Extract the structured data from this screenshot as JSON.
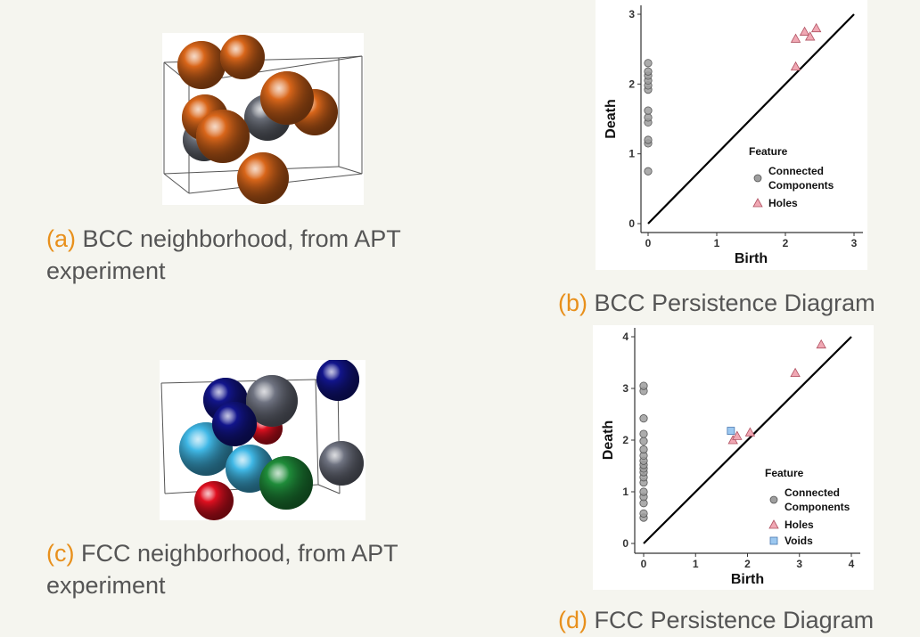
{
  "panels": {
    "a": {
      "letter": "(a)",
      "caption": "BCC neighborhood, from APT experiment"
    },
    "b": {
      "letter": "(b)",
      "caption": "BCC Persistence Diagram"
    },
    "c": {
      "letter": "(c)",
      "caption": "FCC neighborhood, from APT experiment"
    },
    "d": {
      "letter": "(d)",
      "caption": "FCC Persistence Diagram"
    }
  },
  "colors": {
    "label_accent": "#e8901c",
    "bcc_atom": "#d9661a",
    "bcc_center": "#6a6e78",
    "fcc_dark_blue": "#12158c",
    "fcc_light_blue": "#40b8e6",
    "fcc_gray": "#707482",
    "fcc_red": "#e01020",
    "fcc_green": "#1f8c3a",
    "components": "#9e9e9e",
    "holes": "#f0a8b4",
    "voids": "#9cc8f0"
  },
  "chart_data": [
    {
      "type": "scatter",
      "title": "",
      "xlabel": "Birth",
      "ylabel": "Death",
      "xlim": [
        0,
        3
      ],
      "ylim": [
        0,
        3
      ],
      "ticks": [
        "0",
        "1",
        "2",
        "3"
      ],
      "legend_title": "Feature",
      "legend_position": "center-right",
      "diagonal": true,
      "series": [
        {
          "name": "Connected Components",
          "marker": "circle",
          "points": [
            [
              0,
              0.75
            ],
            [
              0,
              1.15
            ],
            [
              0,
              1.2
            ],
            [
              0,
              1.45
            ],
            [
              0,
              1.52
            ],
            [
              0,
              1.62
            ],
            [
              0,
              1.92
            ],
            [
              0,
              1.98
            ],
            [
              0,
              2.05
            ],
            [
              0,
              2.12
            ],
            [
              0,
              2.18
            ],
            [
              0,
              2.3
            ]
          ]
        },
        {
          "name": "Holes",
          "marker": "triangle",
          "points": [
            [
              2.15,
              2.25
            ],
            [
              2.15,
              2.65
            ],
            [
              2.28,
              2.75
            ],
            [
              2.36,
              2.68
            ],
            [
              2.45,
              2.8
            ]
          ]
        }
      ]
    },
    {
      "type": "scatter",
      "title": "",
      "xlabel": "Birth",
      "ylabel": "Death",
      "xlim": [
        0,
        4
      ],
      "ylim": [
        0,
        4
      ],
      "ticks": [
        "0",
        "1",
        "2",
        "3",
        "4"
      ],
      "legend_title": "Feature",
      "legend_position": "bottom-right",
      "diagonal": true,
      "series": [
        {
          "name": "Connected Components",
          "marker": "circle",
          "points": [
            [
              0,
              0.5
            ],
            [
              0,
              0.58
            ],
            [
              0,
              0.78
            ],
            [
              0,
              0.9
            ],
            [
              0,
              1.0
            ],
            [
              0,
              1.18
            ],
            [
              0,
              1.28
            ],
            [
              0,
              1.38
            ],
            [
              0,
              1.45
            ],
            [
              0,
              1.52
            ],
            [
              0,
              1.6
            ],
            [
              0,
              1.7
            ],
            [
              0,
              1.82
            ],
            [
              0,
              1.98
            ],
            [
              0,
              2.12
            ],
            [
              0,
              2.42
            ],
            [
              0,
              2.95
            ],
            [
              0,
              3.05
            ]
          ]
        },
        {
          "name": "Holes",
          "marker": "triangle",
          "points": [
            [
              1.72,
              2.0
            ],
            [
              1.8,
              2.08
            ],
            [
              2.05,
              2.15
            ],
            [
              2.92,
              3.3
            ],
            [
              3.42,
              3.85
            ]
          ]
        },
        {
          "name": "Voids",
          "marker": "square",
          "points": [
            [
              1.68,
              2.18
            ]
          ]
        }
      ]
    }
  ]
}
